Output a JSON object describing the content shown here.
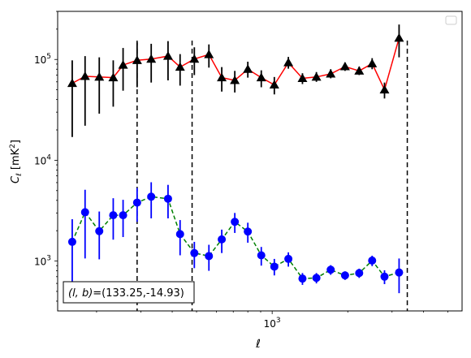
{
  "chart_data": {
    "type": "scatter",
    "xlabel": "ℓ",
    "ylabel": "C_ℓ  [mK²]",
    "xscale": "log",
    "yscale": "log",
    "xlim": [
      140,
      5700
    ],
    "ylim": [
      320,
      300000
    ],
    "x_tick_labels": [
      {
        "value": 1000,
        "label": "10^3"
      }
    ],
    "y_tick_labels": [
      {
        "value": 1000,
        "label": "10^3"
      },
      {
        "value": 10000,
        "label": "10^4"
      },
      {
        "value": 100000,
        "label": "10^5"
      }
    ],
    "annotation": "(l, b)=(133.25,-14.93)",
    "legend": {
      "location": "upper right",
      "entries": []
    },
    "vlines": [
      290,
      480,
      3450
    ],
    "series": [
      {
        "marker": "triangle",
        "color": "#000000",
        "line_color": "#ff0000",
        "line_style": "solid",
        "points": [
          {
            "x": 160,
            "y": 58000,
            "ylo": 17000,
            "yhi": 98000
          },
          {
            "x": 180,
            "y": 68000,
            "ylo": 22000,
            "yhi": 108000
          },
          {
            "x": 205,
            "y": 67000,
            "ylo": 29000,
            "yhi": 105000
          },
          {
            "x": 233,
            "y": 66000,
            "ylo": 34000,
            "yhi": 98000
          },
          {
            "x": 255,
            "y": 88000,
            "ylo": 49000,
            "yhi": 130000
          },
          {
            "x": 290,
            "y": 98000,
            "ylo": 53000,
            "yhi": 148000
          },
          {
            "x": 330,
            "y": 101000,
            "ylo": 59000,
            "yhi": 143000
          },
          {
            "x": 385,
            "y": 108000,
            "ylo": 62000,
            "yhi": 152000
          },
          {
            "x": 430,
            "y": 84000,
            "ylo": 55000,
            "yhi": 113000
          },
          {
            "x": 490,
            "y": 101000,
            "ylo": 70000,
            "yhi": 132000
          },
          {
            "x": 560,
            "y": 112000,
            "ylo": 83000,
            "yhi": 141000
          },
          {
            "x": 630,
            "y": 66000,
            "ylo": 48000,
            "yhi": 84000
          },
          {
            "x": 710,
            "y": 62000,
            "ylo": 47000,
            "yhi": 77000
          },
          {
            "x": 800,
            "y": 80000,
            "ylo": 66000,
            "yhi": 95000
          },
          {
            "x": 905,
            "y": 66000,
            "ylo": 53000,
            "yhi": 78000
          },
          {
            "x": 1020,
            "y": 56000,
            "ylo": 45000,
            "yhi": 67000
          },
          {
            "x": 1160,
            "y": 93000,
            "ylo": 81000,
            "yhi": 106000
          },
          {
            "x": 1320,
            "y": 65000,
            "ylo": 57000,
            "yhi": 73000
          },
          {
            "x": 1500,
            "y": 67000,
            "ylo": 60000,
            "yhi": 75000
          },
          {
            "x": 1710,
            "y": 72000,
            "ylo": 65000,
            "yhi": 80000
          },
          {
            "x": 1950,
            "y": 85000,
            "ylo": 77000,
            "yhi": 93000
          },
          {
            "x": 2220,
            "y": 77000,
            "ylo": 70000,
            "yhi": 85000
          },
          {
            "x": 2500,
            "y": 91000,
            "ylo": 80000,
            "yhi": 103000
          },
          {
            "x": 2800,
            "y": 50000,
            "ylo": 41000,
            "yhi": 59000
          },
          {
            "x": 3200,
            "y": 163000,
            "ylo": 105000,
            "yhi": 222000
          }
        ]
      },
      {
        "marker": "circle",
        "color": "#0000ff",
        "line_color": "#008000",
        "line_style": "dashed",
        "points": [
          {
            "x": 160,
            "y": 1550,
            "ylo": 580,
            "yhi": 2600
          },
          {
            "x": 180,
            "y": 3050,
            "ylo": 1060,
            "yhi": 5100
          },
          {
            "x": 205,
            "y": 1980,
            "ylo": 1040,
            "yhi": 3100
          },
          {
            "x": 233,
            "y": 2850,
            "ylo": 1630,
            "yhi": 4200
          },
          {
            "x": 255,
            "y": 2850,
            "ylo": 1730,
            "yhi": 4050
          },
          {
            "x": 290,
            "y": 3800,
            "ylo": 2450,
            "yhi": 5300
          },
          {
            "x": 330,
            "y": 4350,
            "ylo": 2650,
            "yhi": 6050
          },
          {
            "x": 385,
            "y": 4150,
            "ylo": 2650,
            "yhi": 5700
          },
          {
            "x": 430,
            "y": 1850,
            "ylo": 1140,
            "yhi": 2550
          },
          {
            "x": 490,
            "y": 1200,
            "ylo": 850,
            "yhi": 1550
          },
          {
            "x": 560,
            "y": 1120,
            "ylo": 800,
            "yhi": 1450
          },
          {
            "x": 630,
            "y": 1640,
            "ylo": 1200,
            "yhi": 2050
          },
          {
            "x": 710,
            "y": 2450,
            "ylo": 1900,
            "yhi": 3000
          },
          {
            "x": 800,
            "y": 1960,
            "ylo": 1520,
            "yhi": 2400
          },
          {
            "x": 905,
            "y": 1140,
            "ylo": 900,
            "yhi": 1380
          },
          {
            "x": 1020,
            "y": 880,
            "ylo": 720,
            "yhi": 1050
          },
          {
            "x": 1160,
            "y": 1050,
            "ylo": 880,
            "yhi": 1220
          },
          {
            "x": 1320,
            "y": 670,
            "ylo": 580,
            "yhi": 760
          },
          {
            "x": 1500,
            "y": 680,
            "ylo": 600,
            "yhi": 760
          },
          {
            "x": 1710,
            "y": 820,
            "ylo": 730,
            "yhi": 910
          },
          {
            "x": 1950,
            "y": 720,
            "ylo": 650,
            "yhi": 790
          },
          {
            "x": 2220,
            "y": 760,
            "ylo": 680,
            "yhi": 840
          },
          {
            "x": 2500,
            "y": 1010,
            "ylo": 890,
            "yhi": 1130
          },
          {
            "x": 2800,
            "y": 700,
            "ylo": 590,
            "yhi": 810
          },
          {
            "x": 3200,
            "y": 770,
            "ylo": 480,
            "yhi": 1060
          }
        ]
      }
    ]
  }
}
